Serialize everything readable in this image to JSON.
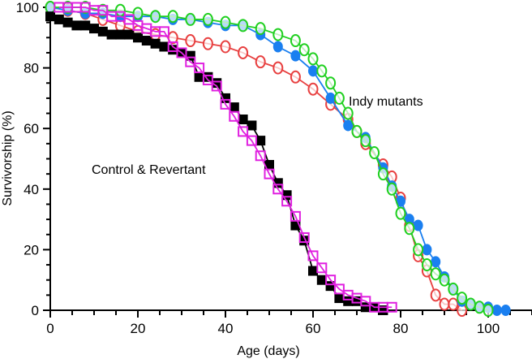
{
  "chart_data": {
    "type": "line",
    "title": "",
    "xlabel": "Age (days)",
    "ylabel": "Survivorship (%)",
    "xlim": [
      0,
      110
    ],
    "ylim": [
      0,
      100
    ],
    "x_ticks": [
      0,
      20,
      40,
      60,
      80,
      100
    ],
    "y_ticks": [
      0,
      20,
      40,
      60,
      80,
      100
    ],
    "x_ticks_minor_step": 5,
    "y_ticks_minor_step": 5,
    "grid": false,
    "annotations": [
      {
        "text": "Control & Revertant",
        "x": 35,
        "y": 46
      },
      {
        "text": "Indy mutants",
        "x": 84,
        "y": 68
      }
    ],
    "series": [
      {
        "name": "Control",
        "marker": "filled-square",
        "color": "#000000",
        "x": [
          0,
          2,
          4,
          6,
          8,
          10,
          12,
          14,
          16,
          18,
          20,
          22,
          24,
          26,
          28,
          30,
          32,
          34,
          36,
          38,
          40,
          42,
          44,
          46,
          48,
          50,
          52,
          54,
          56,
          58,
          60,
          62,
          64,
          66,
          68,
          70,
          72,
          74,
          76
        ],
        "y": [
          97,
          96,
          95,
          94,
          94,
          93,
          92,
          91,
          91,
          91,
          90,
          89,
          88,
          87,
          86,
          85,
          84,
          77,
          77,
          75,
          70,
          67,
          63,
          61,
          56,
          48,
          42,
          38,
          28,
          23,
          13,
          10,
          8,
          4,
          3,
          3,
          1,
          1,
          0
        ]
      },
      {
        "name": "Revertant",
        "marker": "open-square",
        "color": "#e020e0",
        "x": [
          2,
          4,
          6,
          8,
          10,
          12,
          14,
          16,
          18,
          20,
          22,
          24,
          26,
          28,
          30,
          32,
          34,
          36,
          38,
          40,
          42,
          44,
          46,
          48,
          50,
          52,
          54,
          56,
          58,
          60,
          62,
          64,
          66,
          68,
          70,
          72,
          74,
          76,
          78
        ],
        "y": [
          100,
          100,
          100,
          100,
          99,
          99,
          97,
          97,
          96,
          94,
          93,
          92,
          92,
          87,
          85,
          82,
          80,
          76,
          74,
          68,
          64,
          59,
          56,
          51,
          45,
          40,
          36,
          31,
          24,
          18,
          14,
          10,
          7,
          5,
          4,
          3,
          1,
          1,
          1
        ]
      },
      {
        "name": "Indy mutant (blue)",
        "marker": "filled-circle",
        "color": "#1a7ff0",
        "x": [
          0,
          4,
          8,
          12,
          16,
          20,
          24,
          28,
          32,
          36,
          40,
          44,
          48,
          52,
          56,
          60,
          64,
          68,
          72,
          76,
          78,
          80,
          82,
          84,
          86,
          88,
          90,
          92,
          94,
          96,
          98,
          100,
          102,
          104
        ],
        "y": [
          100,
          99,
          98,
          98,
          97,
          97,
          97,
          96,
          96,
          95,
          94,
          94,
          91,
          87,
          84,
          79,
          70,
          61,
          57,
          47,
          41,
          36,
          30,
          28,
          20,
          16,
          11,
          7,
          3,
          2,
          1,
          1,
          0,
          0
        ]
      },
      {
        "name": "Indy mutant (red)",
        "marker": "open-circle",
        "color": "#e84040",
        "x": [
          0,
          4,
          8,
          12,
          16,
          20,
          24,
          28,
          32,
          36,
          40,
          44,
          48,
          52,
          56,
          60,
          64,
          68,
          70,
          72,
          76,
          78,
          80,
          82,
          84,
          86,
          88,
          90,
          92,
          94
        ],
        "y": [
          100,
          99,
          98,
          96,
          94,
          92,
          91,
          90,
          89,
          88,
          87,
          85,
          82,
          80,
          77,
          73,
          68,
          63,
          59,
          55,
          48,
          44,
          37,
          28,
          18,
          13,
          5,
          2,
          2,
          0
        ]
      },
      {
        "name": "Indy mutant (green)",
        "marker": "open-circle",
        "color": "#20d020",
        "x": [
          0,
          4,
          8,
          12,
          16,
          20,
          24,
          28,
          32,
          36,
          40,
          44,
          48,
          52,
          56,
          58,
          60,
          62,
          64,
          66,
          68,
          70,
          72,
          74,
          76,
          78,
          80,
          82,
          84,
          86,
          88,
          90,
          92,
          94,
          96,
          98,
          100
        ],
        "y": [
          100,
          100,
          100,
          99,
          99,
          98,
          97,
          97,
          96,
          96,
          95,
          94,
          93,
          91,
          89,
          86,
          83,
          79,
          75,
          70,
          65,
          59,
          56,
          52,
          45,
          40,
          32,
          27,
          20,
          15,
          12,
          10,
          7,
          4,
          2,
          1,
          0
        ]
      }
    ]
  }
}
